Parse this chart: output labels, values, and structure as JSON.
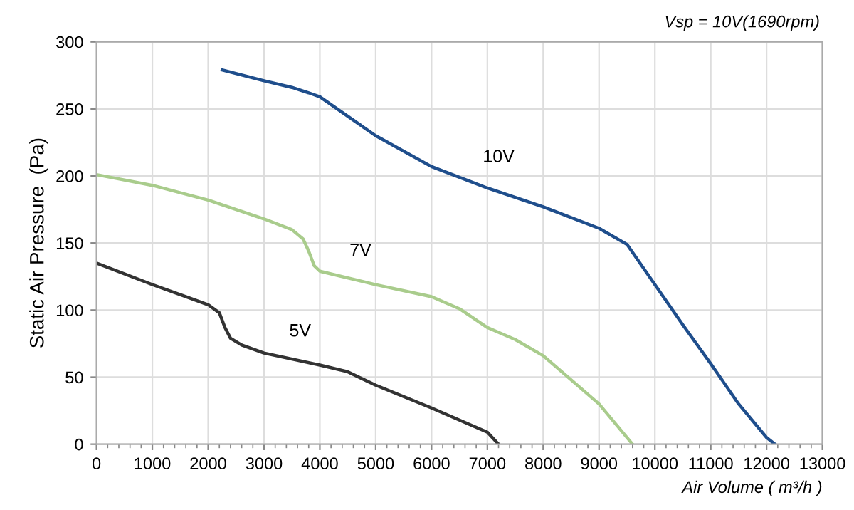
{
  "chart_data": {
    "type": "line",
    "xlabel": "Air Volume ( m³/h )",
    "ylabel": "Static Air Pressure  (Pa)",
    "xlim": [
      0,
      13000
    ],
    "ylim": [
      0,
      300
    ],
    "xticks": [
      0,
      1000,
      2000,
      3000,
      4000,
      5000,
      6000,
      7000,
      8000,
      9000,
      10000,
      11000,
      12000,
      13000
    ],
    "yticks": [
      0,
      50,
      100,
      150,
      200,
      250,
      300
    ],
    "grid": true,
    "line_style": "solid",
    "series": [
      {
        "name": "10V",
        "color": "#1f4e8c",
        "x": [
          2250,
          3000,
          3500,
          3800,
          4000,
          5000,
          6000,
          7000,
          8000,
          9000,
          9500,
          10000,
          10500,
          11000,
          11500,
          12000,
          12150
        ],
        "values": [
          279,
          271,
          266,
          262,
          259,
          230,
          207,
          191,
          177,
          161,
          149,
          119,
          89,
          60,
          30,
          5,
          0
        ]
      },
      {
        "name": "7V",
        "color": "#a9cc8c",
        "x": [
          0,
          1000,
          2000,
          3000,
          3500,
          3700,
          3800,
          3900,
          4000,
          5000,
          6000,
          6500,
          7000,
          7500,
          8000,
          9000,
          9600
        ],
        "values": [
          201,
          193,
          182,
          168,
          160,
          153,
          144,
          133,
          129,
          119,
          110,
          101,
          87,
          78,
          66,
          30,
          0
        ]
      },
      {
        "name": "5V",
        "color": "#333333",
        "x": [
          0,
          1000,
          2000,
          2200,
          2300,
          2400,
          2600,
          3000,
          4000,
          4500,
          5000,
          6000,
          7000,
          7200
        ],
        "values": [
          135,
          119,
          104,
          98,
          87,
          79,
          74,
          68,
          59,
          54,
          44,
          27,
          9,
          0
        ]
      }
    ],
    "annotations": [
      "Vsp = 10V(1690rpm)"
    ]
  }
}
